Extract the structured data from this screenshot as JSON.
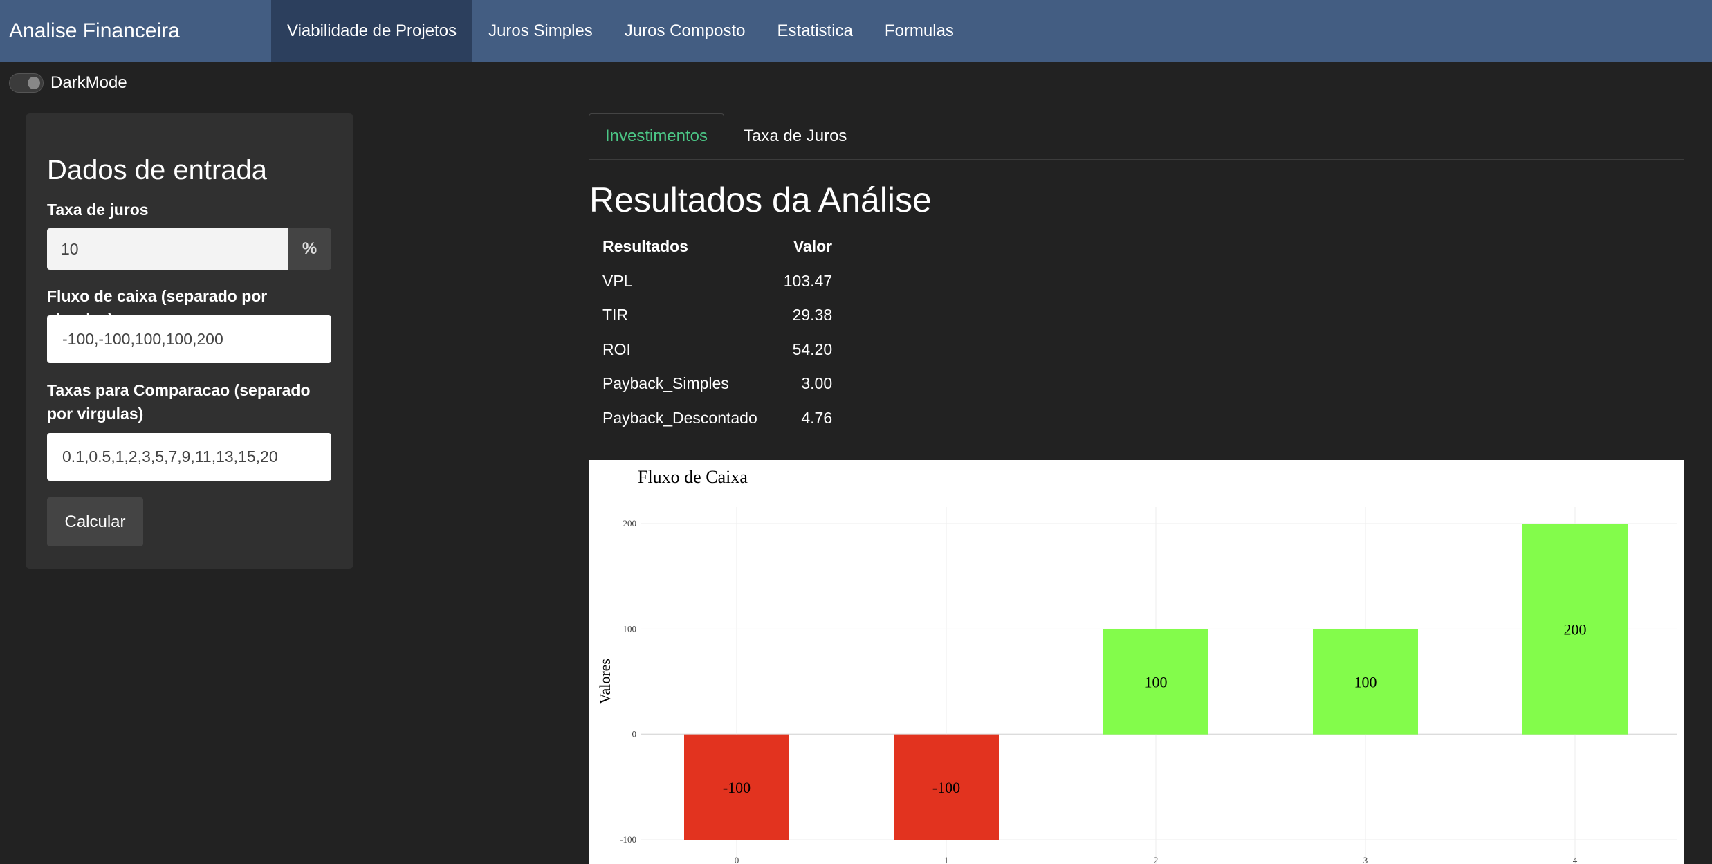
{
  "navbar": {
    "brand": "Analise Financeira",
    "items": [
      {
        "label": "Viabilidade de Projetos",
        "active": true
      },
      {
        "label": "Juros Simples"
      },
      {
        "label": "Juros Composto"
      },
      {
        "label": "Estatistica"
      },
      {
        "label": "Formulas"
      }
    ]
  },
  "darkmode": {
    "label": "DarkMode",
    "enabled": true
  },
  "sidebar": {
    "title": "Dados de entrada",
    "rate_label": "Taxa de juros",
    "rate_value": "10",
    "rate_addon": "%",
    "cashflow_label": "Fluxo de caixa (separado por virgulas)",
    "cashflow_value": "-100,-100,100,100,200",
    "compare_label": "Taxas para Comparacao (separado por virgulas)",
    "compare_value": "0.1,0.5,1,2,3,5,7,9,11,13,15,20",
    "calc_button": "Calcular"
  },
  "tabs": [
    {
      "label": "Investimentos",
      "active": true
    },
    {
      "label": "Taxa de Juros"
    }
  ],
  "results": {
    "title": "Resultados da Análise",
    "headers": [
      "Resultados",
      "Valor"
    ],
    "rows": [
      [
        "VPL",
        "103.47"
      ],
      [
        "TIR",
        "29.38"
      ],
      [
        "ROI",
        "54.20"
      ],
      [
        "Payback_Simples",
        "3.00"
      ],
      [
        "Payback_Descontado",
        "4.76"
      ]
    ]
  },
  "colors": {
    "negative": "#e2331f",
    "positive": "#83fc4b",
    "accent": "#4cc887",
    "navbar": "#435d82"
  },
  "chart_data": {
    "type": "bar",
    "title": "Fluxo de Caixa",
    "xlabel": "",
    "ylabel": "Valores",
    "categories": [
      "0",
      "1",
      "2",
      "3",
      "4"
    ],
    "values": [
      -100,
      -100,
      100,
      100,
      200
    ],
    "data_labels": [
      "-100",
      "-100",
      "100",
      "100",
      "200"
    ],
    "yticks": [
      -100,
      0,
      100,
      200
    ],
    "ylim": [
      -100,
      200
    ],
    "grid": true
  }
}
